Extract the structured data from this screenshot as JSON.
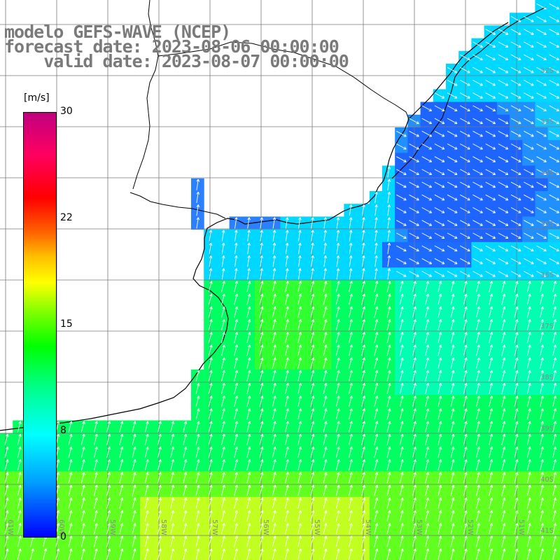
{
  "title": {
    "line1": "modelo GEFS-WAVE (NCEP)",
    "line2": "forecast date: 2023-08-06 00:00:00",
    "line3": "    valid date: 2023-08-07 00:00:00"
  },
  "colorbar": {
    "unit": "[m/s]",
    "ticks": [
      "30",
      "22",
      "15",
      "8",
      "0"
    ],
    "colors": [
      "#0000ff",
      "#00a0ff",
      "#00ffff",
      "#00ff80",
      "#00ff00",
      "#80ff00",
      "#ffff00",
      "#ff6000",
      "#ff0000",
      "#c00080"
    ]
  },
  "axes": {
    "lon_labels": [
      "61W",
      "60W",
      "59W",
      "58W",
      "57W",
      "56W",
      "55W",
      "54W",
      "53W",
      "52W",
      "51W"
    ],
    "lat_labels": [
      "32S",
      "33S",
      "34S",
      "35S",
      "36S",
      "37S",
      "38S",
      "39S",
      "40S",
      "41S"
    ]
  },
  "field": {
    "variable": "wind speed",
    "unit": "m/s",
    "description_colors": {
      "calm": "#1e64ff",
      "low": "#00e0ff",
      "mid": "#00ff50",
      "high": "#b0ff30"
    }
  }
}
